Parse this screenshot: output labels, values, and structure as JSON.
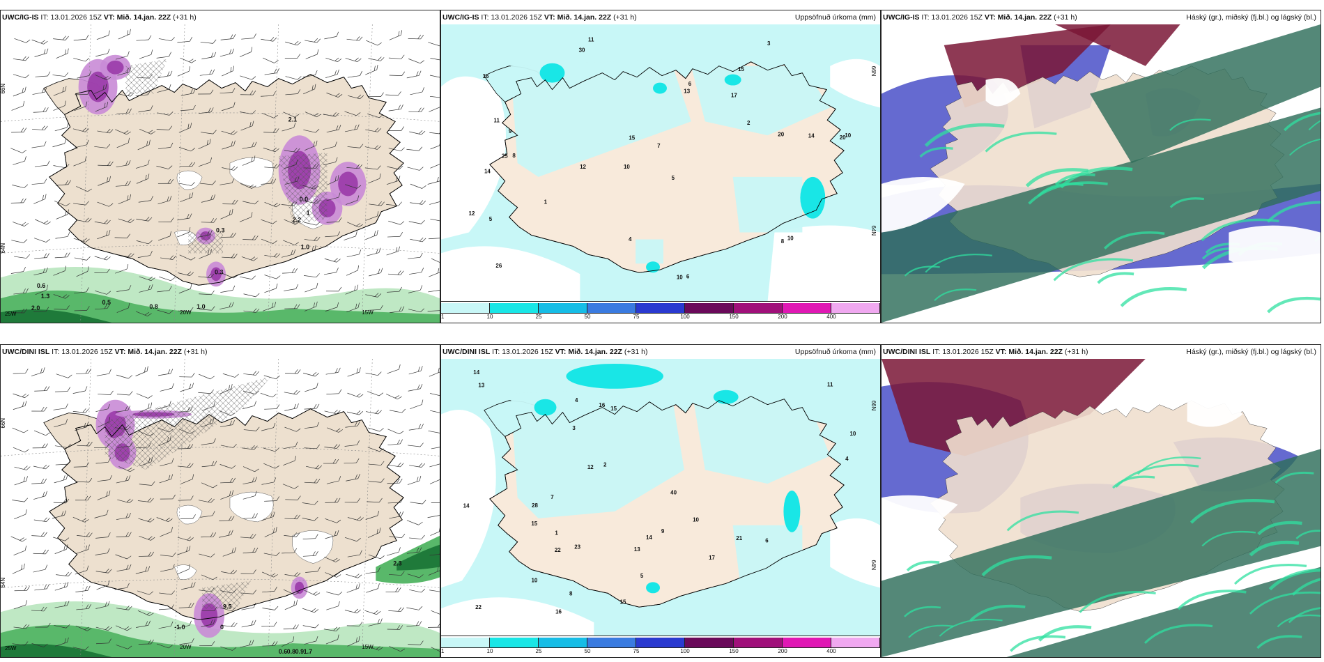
{
  "rows": [
    {
      "model": "UWC/IG-IS",
      "it_label": "IT:",
      "it": "13.01.2026 15Z",
      "vt_label": "VT:",
      "vt": "Mið. 14.jan. 22Z",
      "lead": "(+31 h)"
    },
    {
      "model": "UWC/DINI ISL",
      "it_label": "IT:",
      "it": "13.01.2026 15Z",
      "vt_label": "VT:",
      "vt": "Mið. 14.jan. 22Z",
      "lead": "(+31 h)"
    }
  ],
  "panel_titles": {
    "precip": "Uppsöfnuð úrkoma (mm)",
    "cloud": "Háský (gr.), miðský (fj.bl.) og lágský (bl.)"
  },
  "precip_colorbar": {
    "ticks": [
      "1",
      "10",
      "25",
      "50",
      "75",
      "100",
      "150",
      "200",
      "400"
    ],
    "colors": [
      "#c8f7f7",
      "#19e6e6",
      "#16bde6",
      "#3a7be0",
      "#2a3ad0",
      "#6a0a5a",
      "#a0107a",
      "#e018b4",
      "#f0a8f0"
    ]
  },
  "wind_panels": [
    {
      "lat_labels": [
        "66N",
        "64N"
      ],
      "lon_labels": [
        "25W",
        "20W",
        "15W"
      ],
      "values": [
        "0.6",
        "1.3",
        "2.0",
        "0.5",
        "0.8",
        "1.0",
        "1.0",
        "0.3",
        "0.3",
        "2.1",
        "0.0",
        "1",
        "2.2"
      ]
    },
    {
      "lat_labels": [
        "66N",
        "64N"
      ],
      "lon_labels": [
        "25W",
        "20W",
        "15W"
      ],
      "values": [
        "-1.0",
        "2.3",
        "0.6",
        "0.8",
        "0.9",
        "1.7",
        "0",
        "9.5"
      ]
    }
  ],
  "precip_panels": [
    {
      "lat_labels": [
        "66N",
        "64N"
      ],
      "values": [
        "11",
        "15",
        "20",
        "10",
        "5",
        "8",
        "16",
        "17",
        "14",
        "13",
        "7",
        "26",
        "30",
        "12",
        "10",
        "6",
        "4",
        "3",
        "2",
        "1",
        "9",
        "25",
        "10",
        "14",
        "12",
        "11",
        "15",
        "20",
        "10",
        "5",
        "8",
        "6"
      ]
    },
    {
      "lat_labels": [
        "66N",
        "64N"
      ],
      "values": [
        "13",
        "14",
        "14",
        "11",
        "10",
        "17",
        "15",
        "23",
        "22",
        "21",
        "22",
        "40",
        "16",
        "15",
        "14",
        "12",
        "13",
        "10",
        "3",
        "2",
        "4",
        "5",
        "8",
        "7",
        "28",
        "9",
        "1",
        "6",
        "15",
        "16",
        "10",
        "4"
      ]
    }
  ]
}
